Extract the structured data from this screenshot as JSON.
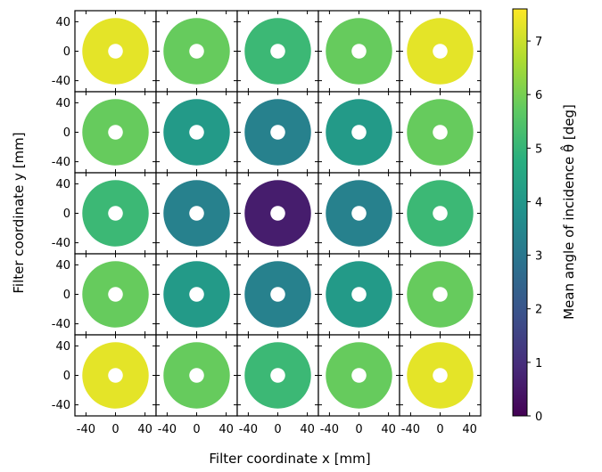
{
  "chart_data": {
    "type": "heatmap",
    "subtype": "small-multiples annular maps",
    "xlabel": "Filter coordinate  x [mm]",
    "ylabel": "Filter coordinate  y [mm]",
    "colorbar_label": "Mean angle of incidence  θ̂ [deg]",
    "colormap": "viridis",
    "grid_rows": 5,
    "grid_cols": 5,
    "x_ticks": [
      -40,
      0,
      40
    ],
    "y_ticks": [
      40,
      0,
      -40
    ],
    "axis_range_mm": [
      -55,
      55
    ],
    "annulus_outer_radius_mm": 45,
    "annulus_inner_radius_mm": 10,
    "colorbar_ticks": [
      0,
      1,
      2,
      3,
      4,
      5,
      6,
      7
    ],
    "colorbar_range": [
      0,
      7.6
    ],
    "panel_values_deg": [
      [
        7.3,
        5.8,
        5.1,
        5.8,
        7.3
      ],
      [
        5.8,
        4.1,
        3.3,
        4.1,
        5.8
      ],
      [
        5.1,
        3.3,
        0.6,
        3.3,
        5.1
      ],
      [
        5.8,
        4.1,
        3.3,
        4.1,
        5.8
      ],
      [
        7.3,
        5.8,
        5.1,
        5.8,
        7.3
      ]
    ]
  }
}
